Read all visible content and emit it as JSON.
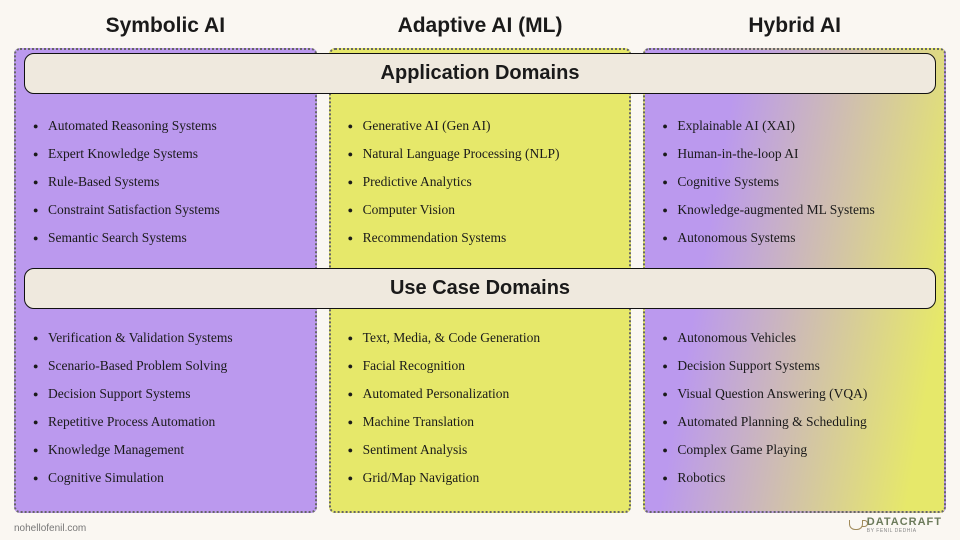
{
  "background_color": "#faf7f2",
  "columns": [
    {
      "key": "symbolic",
      "title": "Symbolic AI",
      "bg": "#bb99ee",
      "app_items": [
        "Automated Reasoning Systems",
        "Expert Knowledge Systems",
        "Rule-Based Systems",
        "Constraint Satisfaction Systems",
        "Semantic Search Systems"
      ],
      "use_items": [
        "Verification & Validation Systems",
        "Scenario-Based Problem Solving",
        "Decision Support Systems",
        "Repetitive Process Automation",
        "Knowledge Management",
        "Cognitive Simulation"
      ]
    },
    {
      "key": "adaptive",
      "title": "Adaptive AI (ML)",
      "bg": "#e6e86a",
      "app_items": [
        "Generative AI (Gen AI)",
        "Natural Language Processing (NLP)",
        "Predictive Analytics",
        "Computer Vision",
        "Recommendation Systems"
      ],
      "use_items": [
        "Text, Media, & Code Generation",
        "Facial Recognition",
        "Automated Personalization",
        "Machine Translation",
        "Sentiment Analysis",
        "Grid/Map Navigation"
      ]
    },
    {
      "key": "hybrid",
      "title": "Hybrid AI",
      "bg_gradient": [
        "#bb99ee",
        "#e6e86a"
      ],
      "app_items": [
        "Explainable AI (XAI)",
        "Human-in-the-loop AI",
        "Cognitive Systems",
        "Knowledge-augmented ML Systems",
        "Autonomous Systems"
      ],
      "use_items": [
        "Autonomous Vehicles",
        "Decision Support Systems",
        "Visual Question Answering (VQA)",
        "Automated Planning & Scheduling",
        "Complex Game Playing",
        "Robotics"
      ]
    }
  ],
  "section_headers": {
    "application": "Application Domains",
    "usecase": "Use Case Domains"
  },
  "header_style": {
    "bg": "#efe9de",
    "border": "#111111",
    "fontsize": 20
  },
  "footer_link": "nohellofenil.com",
  "logo": {
    "main": "DATACRAFT",
    "sub": "BY FENIL DEDHIA"
  },
  "typography": {
    "title_fontsize": 21,
    "item_fontsize": 13.5,
    "title_font": "sans-serif",
    "item_font": "serif"
  },
  "column_border": {
    "style": "dotted",
    "color": "#666666",
    "width": 2
  }
}
